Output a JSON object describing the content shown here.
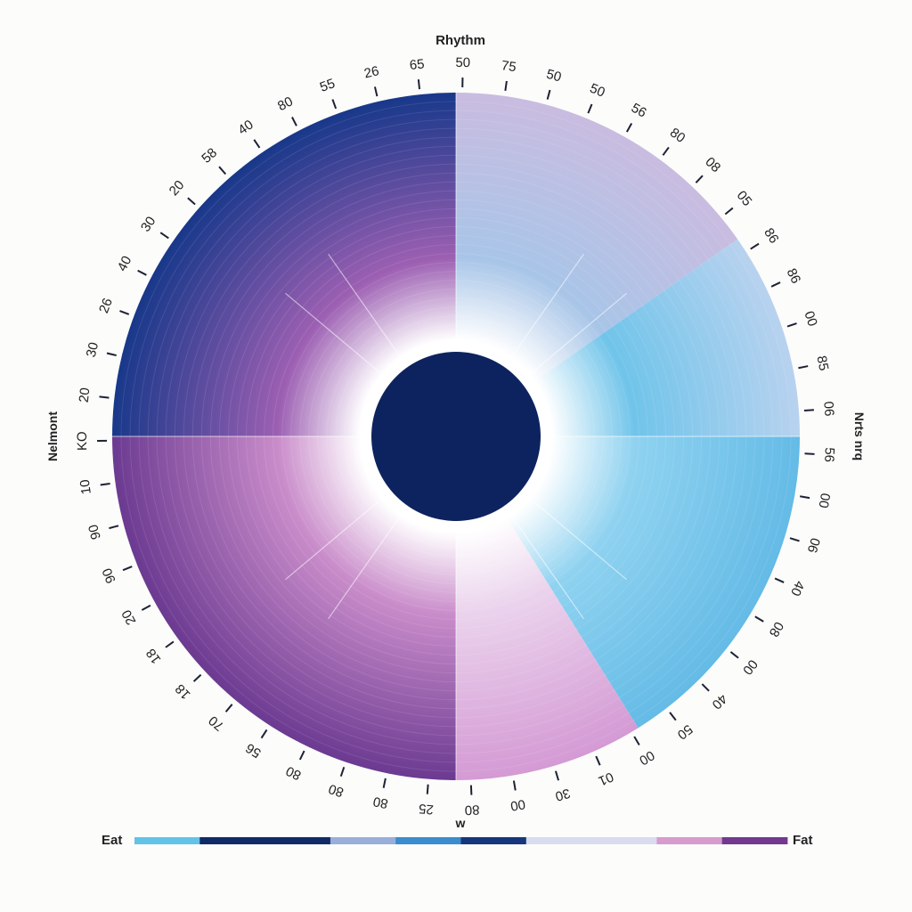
{
  "chart_data": {
    "type": "pie",
    "title": "Rhythm",
    "left_label": "Nelmont",
    "right_label": "Nrts nrq",
    "bottom_label": "w",
    "legend": {
      "left": "Eat",
      "right": "Fat",
      "colors": [
        "#62c3e6",
        "#102a66",
        "#102a66",
        "#99afd9",
        "#3b8ccc",
        "#17367b",
        "#d8dcee",
        "#d9dcee",
        "#d69bcf",
        "#72398f"
      ]
    },
    "sectors": [
      {
        "name": "upper-left-outer",
        "from_deg": -90,
        "to_deg": -35,
        "color_outer": "#c9bce0",
        "color_inner": "#a8c5e8"
      },
      {
        "name": "left-upper-middle",
        "from_deg": -35,
        "to_deg": 0,
        "color_outer": "#b8d2ef",
        "color_inner": "#70c4ea"
      },
      {
        "name": "left-lower",
        "from_deg": 0,
        "to_deg": 58,
        "color_outer": "#64bbe6",
        "color_inner": "#8fd2f0"
      },
      {
        "name": "bottom-pink",
        "from_deg": 58,
        "to_deg": 90,
        "color_outer": "#d49ad4",
        "color_inner": "#ead2ec"
      },
      {
        "name": "right-lower",
        "from_deg": 90,
        "to_deg": 180,
        "color_outer": "#6b3a91",
        "color_inner": "#c98cca"
      },
      {
        "name": "right-upper",
        "from_deg": 180,
        "to_deg": 270,
        "color_outer": "#18388a",
        "color_inner": "#9c5fb2"
      }
    ],
    "center_color": "#0d235f",
    "tick_labels": [
      "65",
      "50",
      "75",
      "50",
      "50",
      "56",
      "80",
      "08",
      "05",
      "86",
      "86",
      "00",
      "85",
      "06",
      "56",
      "00",
      "06",
      "40",
      "08",
      "00",
      "40",
      "50",
      "00",
      "01",
      "30",
      "00",
      "80",
      "25",
      "80",
      "80",
      "80",
      "56",
      "70",
      "18",
      "18",
      "20",
      "90",
      "90",
      "10",
      "KO",
      "20",
      "30",
      "26",
      "40",
      "30",
      "20",
      "58",
      "40",
      "80",
      "55",
      "26"
    ]
  }
}
